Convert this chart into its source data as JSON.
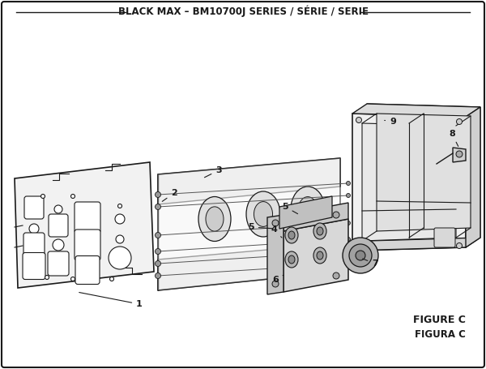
{
  "title": "BLACK MAX – BM10700J SERIES / SÉRIE / SERIE",
  "figure_label_1": "FIGURE C",
  "figure_label_2": "FIGURA C",
  "bg_color": "#ffffff",
  "line_color": "#1a1a1a",
  "title_fontsize": 8.5,
  "label_fontsize": 8,
  "figure_c_fontsize": 9
}
